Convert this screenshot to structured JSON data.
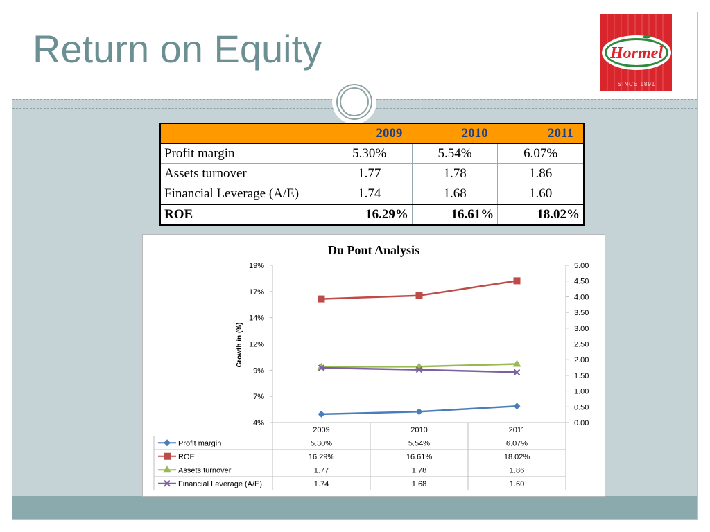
{
  "slide": {
    "title": "Return on Equity"
  },
  "logo": {
    "name": "Hormel",
    "since": "SINCE 1891"
  },
  "table": {
    "years": [
      "2009",
      "2010",
      "2011"
    ],
    "rows": [
      {
        "label": "Profit margin",
        "values": [
          "5.30%",
          "5.54%",
          "6.07%"
        ]
      },
      {
        "label": "Assets turnover",
        "values": [
          "1.77",
          "1.78",
          "1.86"
        ]
      },
      {
        "label": "Financial Leverage (A/E)",
        "values": [
          "1.74",
          "1.68",
          "1.60"
        ]
      },
      {
        "label": "ROE",
        "values": [
          "16.29%",
          "16.61%",
          "18.02%"
        ]
      }
    ]
  },
  "chart_data": {
    "type": "line",
    "title": "Du Pont Analysis",
    "ylabel": "Growth in (%)",
    "categories": [
      "2009",
      "2010",
      "2011"
    ],
    "y_left_ticks": [
      "4%",
      "7%",
      "9%",
      "12%",
      "14%",
      "17%",
      "19%"
    ],
    "y_left_range": [
      4.5,
      19.5
    ],
    "y_right_ticks": [
      "0.00",
      "0.50",
      "1.00",
      "1.50",
      "2.00",
      "2.50",
      "3.00",
      "3.50",
      "4.00",
      "4.50",
      "5.00"
    ],
    "y_right_range": [
      0,
      5
    ],
    "series": [
      {
        "name": "Profit margin",
        "axis": "left",
        "color": "#4a7ebb",
        "marker": "diamond",
        "values": [
          5.3,
          5.54,
          6.07
        ],
        "labels": [
          "5.30%",
          "5.54%",
          "6.07%"
        ]
      },
      {
        "name": "ROE",
        "axis": "left",
        "color": "#be4b48",
        "marker": "square",
        "values": [
          16.29,
          16.61,
          18.02
        ],
        "labels": [
          "16.29%",
          "16.61%",
          "18.02%"
        ]
      },
      {
        "name": "Assets turnover",
        "axis": "right",
        "color": "#98b954",
        "marker": "triangle",
        "values": [
          1.77,
          1.78,
          1.86
        ],
        "labels": [
          "1.77",
          "1.78",
          "1.86"
        ]
      },
      {
        "name": "Financial Leverage (A/E)",
        "axis": "right",
        "color": "#7d60a0",
        "marker": "x",
        "values": [
          1.74,
          1.68,
          1.6
        ],
        "labels": [
          "1.74",
          "1.68",
          "1.60"
        ]
      }
    ],
    "legend": "bottom-table",
    "grid": false
  }
}
